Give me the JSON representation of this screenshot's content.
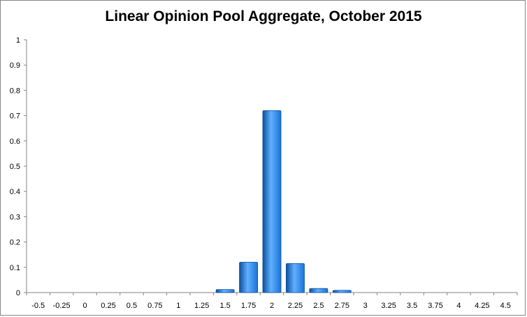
{
  "chart_data": {
    "type": "bar",
    "title": "Linear Opinion Pool Aggregate, October 2015",
    "xlabel": "",
    "ylabel": "",
    "categories": [
      "-0.5",
      "-0.25",
      "0",
      "0.25",
      "0.5",
      "0.75",
      "1",
      "1.25",
      "1.5",
      "1.75",
      "2",
      "2.25",
      "2.5",
      "2.75",
      "3",
      "3.25",
      "3.5",
      "3.75",
      "4",
      "4.25",
      "4.5"
    ],
    "values": [
      0,
      0,
      0,
      0,
      0,
      0,
      0,
      0,
      0.012,
      0.12,
      0.72,
      0.115,
      0.016,
      0.009,
      0,
      0,
      0,
      0,
      0,
      0,
      0
    ],
    "ylim": [
      0,
      1
    ],
    "yticks": [
      "0",
      "0.1",
      "0.2",
      "0.3",
      "0.4",
      "0.5",
      "0.6",
      "0.7",
      "0.8",
      "0.9",
      "1"
    ],
    "grid": false,
    "legend": "none",
    "colors": {
      "bar": "#1a73d6",
      "bar_dark": "#0d4f9e",
      "bar_light": "#5fb0ff",
      "axis": "#868686"
    }
  }
}
